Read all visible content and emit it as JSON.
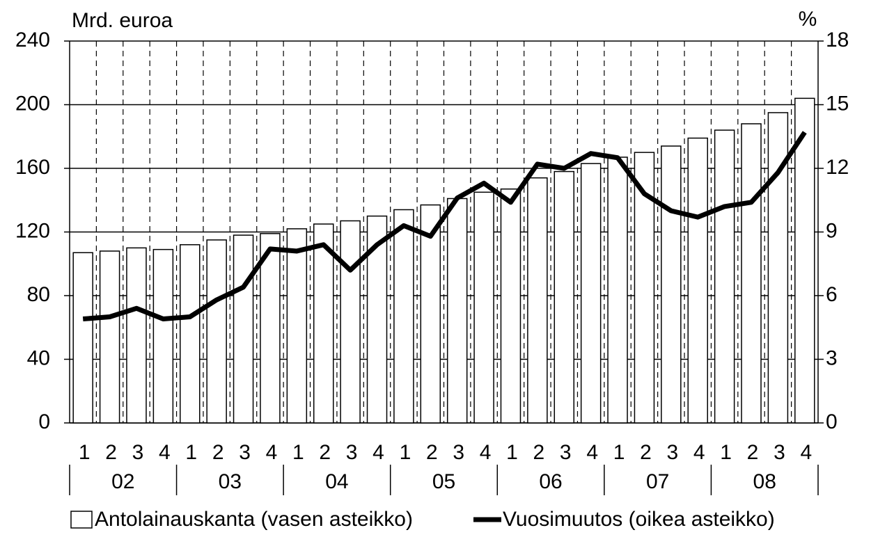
{
  "chart_data": {
    "type": "bar",
    "y_label": "Mrd. euroa",
    "y2_label": "%",
    "categories": [
      "1",
      "2",
      "3",
      "4",
      "1",
      "2",
      "3",
      "4",
      "1",
      "2",
      "3",
      "4",
      "1",
      "2",
      "3",
      "4",
      "1",
      "2",
      "3",
      "4",
      "1",
      "2",
      "3",
      "4",
      "1",
      "2",
      "3",
      "4"
    ],
    "year_groups": [
      "02",
      "03",
      "04",
      "05",
      "06",
      "07",
      "08"
    ],
    "series": [
      {
        "name": "Antolainauskanta (vasen asteikko)",
        "type": "bar",
        "color": "#ffffff",
        "values": [
          107,
          108,
          110,
          109,
          112,
          115,
          118,
          119,
          122,
          125,
          127,
          130,
          134,
          137,
          141,
          145,
          147,
          154,
          158,
          163,
          167,
          170,
          174,
          179,
          184,
          188,
          195,
          204
        ]
      },
      {
        "name": "Vuosimuutos (oikea asteikko)",
        "type": "line",
        "axis": "y2",
        "color": "#000000",
        "values": [
          4.9,
          5.0,
          5.4,
          4.9,
          5.0,
          5.8,
          6.4,
          8.2,
          8.1,
          8.4,
          7.2,
          8.4,
          9.3,
          8.8,
          10.6,
          11.3,
          10.4,
          12.2,
          12.0,
          12.7,
          12.5,
          10.8,
          10.0,
          9.7,
          10.2,
          10.4,
          11.8,
          13.7
        ]
      }
    ],
    "ylim": [
      0,
      240
    ],
    "yticks": [
      0,
      40,
      80,
      120,
      160,
      200,
      240
    ],
    "y2lim": [
      0,
      18
    ],
    "y2ticks": [
      0,
      3,
      6,
      9,
      12,
      15,
      18
    ],
    "grid": true,
    "legend": "bottom"
  }
}
